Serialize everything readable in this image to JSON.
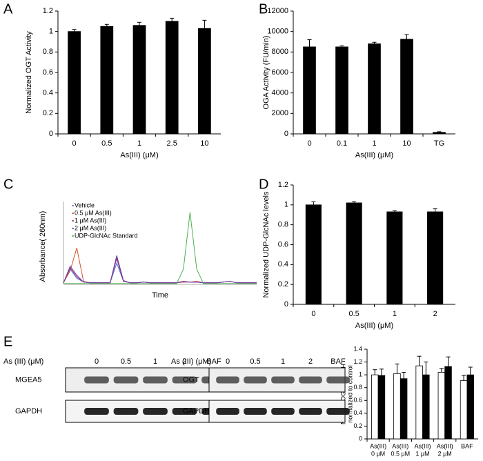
{
  "chart_data": [
    {
      "type": "bar",
      "label": "A",
      "ylabel": "Normalized OGT Activity",
      "xlabel": "As(III) (μM)",
      "categories": [
        "0",
        "0.5",
        "1",
        "2.5",
        "10"
      ],
      "values": [
        1.0,
        1.05,
        1.06,
        1.1,
        1.03
      ],
      "errors": [
        0.02,
        0.02,
        0.03,
        0.03,
        0.08
      ],
      "color": "#000000",
      "ylim": [
        0,
        1.2
      ],
      "yticks": [
        0,
        0.2,
        0.4,
        0.6,
        0.8,
        1,
        1.2
      ]
    },
    {
      "type": "bar",
      "label": "B",
      "ylabel": "OGA Activity (FU/min)",
      "xlabel": "As(III) (μM)",
      "categories": [
        "0",
        "0.1",
        "1",
        "10",
        "TG"
      ],
      "values": [
        8500,
        8500,
        8800,
        9250,
        150
      ],
      "errors": [
        700,
        100,
        150,
        450,
        60
      ],
      "color": "#000000",
      "ylim": [
        0,
        12000
      ],
      "yticks": [
        0,
        2000,
        4000,
        6000,
        8000,
        10000,
        12000
      ]
    },
    {
      "type": "line",
      "label": "C",
      "ylabel": "Absorbance( 260nm)",
      "xlabel": "Time",
      "ylim": [
        0,
        100
      ],
      "series": [
        {
          "name": "Vehicle",
          "color": "#4a6fd4",
          "values": [
            2,
            20,
            8,
            3,
            2,
            2,
            2,
            2,
            28,
            4,
            2,
            2,
            3,
            2,
            2,
            2,
            2,
            2,
            3,
            3,
            3,
            2,
            2,
            2,
            3,
            4,
            2,
            2,
            2,
            2
          ]
        },
        {
          "name": "0.5 μM As(III)",
          "color": "#d2502a",
          "values": [
            2,
            18,
            48,
            4,
            2,
            2,
            2,
            2,
            36,
            4,
            2,
            2,
            3,
            2,
            2,
            2,
            2,
            2,
            3,
            3,
            4,
            2,
            2,
            2,
            3,
            4,
            2,
            2,
            2,
            2
          ]
        },
        {
          "name": "1 μM As(III)",
          "color": "#a0306a",
          "values": [
            2,
            22,
            10,
            3,
            2,
            2,
            2,
            2,
            34,
            4,
            2,
            2,
            3,
            2,
            2,
            2,
            2,
            2,
            4,
            3,
            3,
            2,
            2,
            2,
            3,
            4,
            2,
            2,
            2,
            2
          ]
        },
        {
          "name": "2 μM As(III)",
          "color": "#6a3fb0",
          "values": [
            2,
            24,
            12,
            3,
            2,
            2,
            2,
            2,
            38,
            5,
            2,
            2,
            3,
            2,
            2,
            2,
            2,
            2,
            4,
            3,
            3,
            2,
            2,
            2,
            3,
            4,
            2,
            2,
            2,
            2
          ]
        },
        {
          "name": "UDP-GlcNAc Standard",
          "color": "#4caf50",
          "values": [
            1,
            1,
            1,
            1,
            1,
            1,
            1,
            1,
            1,
            1,
            1,
            1,
            1,
            1,
            1,
            1,
            1,
            1,
            20,
            95,
            20,
            1,
            1,
            1,
            1,
            1,
            1,
            1,
            1,
            1
          ]
        }
      ]
    },
    {
      "type": "bar",
      "label": "D",
      "ylabel": "Normalized UDP-GlcNAc levels",
      "xlabel": "As(III) (μM)",
      "categories": [
        "0",
        "0.5",
        "1",
        "2"
      ],
      "values": [
        1.0,
        1.02,
        0.93,
        0.93
      ],
      "errors": [
        0.03,
        0.01,
        0.01,
        0.03
      ],
      "color": "#000000",
      "ylim": [
        0,
        1.2
      ],
      "yticks": [
        0,
        0.2,
        0.4,
        0.6,
        0.8,
        1,
        1.2
      ]
    },
    {
      "type": "bar",
      "ylabel": [
        "MGEA5/OGT/GAPDH",
        "normalized to control"
      ],
      "categories": [
        [
          "As(III)",
          "0 μM"
        ],
        [
          "As(III)",
          "0.5 μM"
        ],
        [
          "As(III)",
          "1 μM"
        ],
        [
          "As(III)",
          "2 μM"
        ],
        [
          "BAF"
        ]
      ],
      "series": [
        {
          "color": "#ffffff",
          "values": [
            1.0,
            1.02,
            1.14,
            1.04,
            0.91
          ],
          "errors": [
            0.08,
            0.15,
            0.15,
            0.06,
            0.08
          ]
        },
        {
          "color": "#000000",
          "values": [
            0.99,
            0.94,
            1.0,
            1.13,
            1.0
          ],
          "errors": [
            0.1,
            0.1,
            0.2,
            0.15,
            0.12
          ]
        }
      ],
      "ylim": [
        0,
        1.4
      ],
      "yticks": [
        0,
        0.2,
        0.4,
        0.6,
        0.8,
        1,
        1.2,
        1.4
      ]
    }
  ],
  "panel_e": {
    "label": "E",
    "blots": [
      {
        "header": "As (III) (μM)",
        "lanes": [
          "0",
          "0.5",
          "1",
          "2",
          "BAF"
        ],
        "rows": [
          "MGEA5",
          "GAPDH"
        ]
      },
      {
        "header": "As (III) (μM)",
        "lanes": [
          "0",
          "0.5",
          "1",
          "2",
          "BAF"
        ],
        "rows": [
          "OGT",
          "GAPDH"
        ]
      }
    ]
  }
}
